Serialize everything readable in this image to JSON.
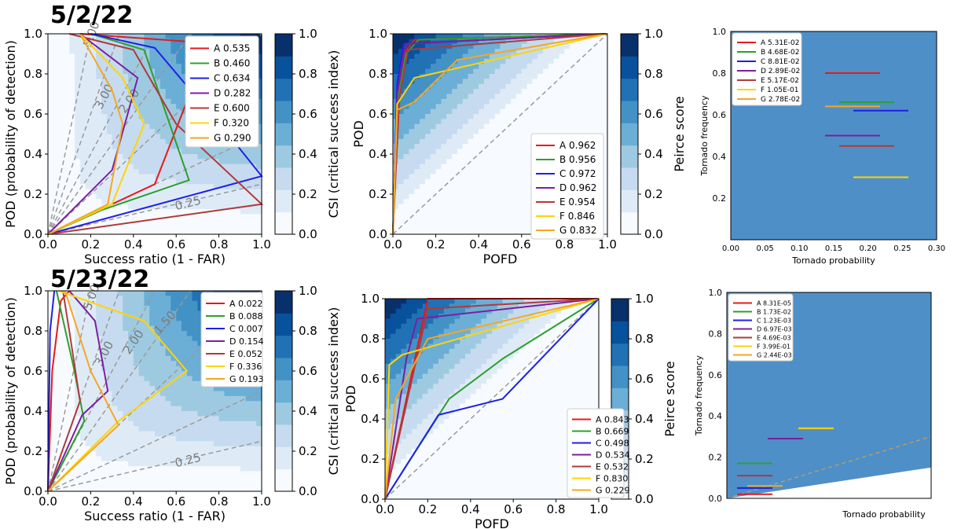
{
  "titles": {
    "row1": "5/2/22",
    "row2": "5/23/22"
  },
  "colors": {
    "A": "#e41a1c",
    "B": "#2ca02c",
    "C": "#1f1fe8",
    "D": "#7b1fa2",
    "E": "#b03a3a",
    "F": "#ffd400",
    "G": "#f5a623",
    "dashed": "#9a9a9a",
    "contour_dark": "#08306b",
    "contour_light": "#f7fbff"
  },
  "chart_data": [
    {
      "type": "line",
      "panel": "performance-diagram-5-2-22",
      "xlabel": "Success ratio (1 - FAR)",
      "ylabel": "POD (probability of detection)",
      "colorbar_label": "CSI (critical success index)",
      "xlim": [
        0,
        1
      ],
      "ylim": [
        0,
        1
      ],
      "xticks": [
        "0.0",
        "0.2",
        "0.4",
        "0.6",
        "0.8",
        "1.0"
      ],
      "yticks": [
        "0.0",
        "0.2",
        "0.4",
        "0.6",
        "0.8",
        "1.0"
      ],
      "colorbar_ticks": [
        "0.0",
        "0.2",
        "0.4",
        "0.6",
        "0.8",
        "1.0"
      ],
      "bias_labels": [
        "5.00",
        "3.00",
        "2.00",
        "0.25"
      ],
      "legend_position": "upper-right",
      "series": [
        {
          "name": "A 0.535",
          "key": "A",
          "x": [
            0,
            0.3,
            0.5,
            0.7,
            0.8,
            0.15
          ],
          "y": [
            0,
            0.15,
            0.25,
            0.8,
            0.95,
            1.0
          ]
        },
        {
          "name": "B 0.460",
          "key": "B",
          "x": [
            0,
            0.25,
            0.66,
            0.45,
            0.2
          ],
          "y": [
            0,
            0.12,
            0.27,
            0.92,
            1.0
          ]
        },
        {
          "name": "C 0.634",
          "key": "C",
          "x": [
            0,
            1.0,
            0.88,
            0.5,
            0.2
          ],
          "y": [
            0,
            0.29,
            0.45,
            0.93,
            1.0
          ]
        },
        {
          "name": "D 0.282",
          "key": "D",
          "x": [
            0,
            0.3,
            0.42,
            0.15
          ],
          "y": [
            0,
            0.32,
            0.78,
            1.0
          ]
        },
        {
          "name": "E 0.600",
          "key": "E",
          "x": [
            0,
            1.0,
            0.6,
            0.4,
            0.1
          ],
          "y": [
            0,
            0.15,
            0.55,
            0.92,
            1.0
          ]
        },
        {
          "name": "F 0.320",
          "key": "F",
          "x": [
            0,
            0.3,
            0.45,
            0.35,
            0.15
          ],
          "y": [
            0,
            0.15,
            0.55,
            0.78,
            1.0
          ]
        },
        {
          "name": "G 0.290",
          "key": "G",
          "x": [
            0,
            0.28,
            0.35,
            0.3,
            0.15
          ],
          "y": [
            0,
            0.15,
            0.55,
            0.72,
            1.0
          ]
        }
      ]
    },
    {
      "type": "line",
      "panel": "roc-5-2-22",
      "xlabel": "POFD",
      "ylabel": "POD",
      "colorbar_label": "Peirce score",
      "xlim": [
        0,
        1
      ],
      "ylim": [
        0,
        1
      ],
      "xticks": [
        "0.0",
        "0.2",
        "0.4",
        "0.6",
        "0.8",
        "1.0"
      ],
      "yticks": [
        "0.0",
        "0.2",
        "0.4",
        "0.6",
        "0.8",
        "1.0"
      ],
      "colorbar_ticks": [
        "0.0",
        "0.2",
        "0.4",
        "0.6",
        "0.8",
        "1.0"
      ],
      "legend_position": "lower-right",
      "series": [
        {
          "name": "A 0.962",
          "key": "A",
          "x": [
            0,
            0.02,
            0.05,
            0.1,
            1.0
          ],
          "y": [
            0,
            0.7,
            0.9,
            0.97,
            1.0
          ]
        },
        {
          "name": "B 0.956",
          "key": "B",
          "x": [
            0,
            0.02,
            0.06,
            0.12,
            1.0
          ],
          "y": [
            0,
            0.65,
            0.9,
            0.97,
            1.0
          ]
        },
        {
          "name": "C 0.972",
          "key": "C",
          "x": [
            0,
            0.02,
            0.05,
            1.0
          ],
          "y": [
            0,
            0.75,
            0.95,
            1.0
          ]
        },
        {
          "name": "D 0.962",
          "key": "D",
          "x": [
            0,
            0.02,
            0.06,
            1.0
          ],
          "y": [
            0,
            0.7,
            0.95,
            1.0
          ]
        },
        {
          "name": "E 0.954",
          "key": "E",
          "x": [
            0,
            0.03,
            0.07,
            1.0
          ],
          "y": [
            0,
            0.68,
            0.92,
            1.0
          ]
        },
        {
          "name": "F 0.846",
          "key": "F",
          "x": [
            0,
            0.02,
            0.1,
            1.0
          ],
          "y": [
            0,
            0.65,
            0.78,
            1.0
          ]
        },
        {
          "name": "G 0.832",
          "key": "G",
          "x": [
            0,
            0.02,
            0.1,
            0.3,
            1.0
          ],
          "y": [
            0,
            0.62,
            0.66,
            0.87,
            1.0
          ]
        }
      ]
    },
    {
      "type": "line",
      "panel": "reliability-5-2-22",
      "xlabel": "Tornado probability",
      "ylabel": "Tornado frequency",
      "yticks": [
        "0.0",
        "0.2",
        "0.4",
        "0.6",
        "0.8",
        "1.0"
      ],
      "xticks": [
        "0.00",
        "0.05",
        "0.10",
        "0.15",
        "0.20",
        "0.25",
        "0.30"
      ],
      "legend_position": "upper-left",
      "series": [
        {
          "name": "A 5.31E-02",
          "key": "A",
          "y_level": 0.8
        },
        {
          "name": "B 4.68E-02",
          "key": "B",
          "y_level": 0.66
        },
        {
          "name": "C 8.81E-02",
          "key": "C",
          "y_level": 0.62
        },
        {
          "name": "D 2.89E-02",
          "key": "D",
          "y_level": 0.5
        },
        {
          "name": "E 5.17E-02",
          "key": "E",
          "y_level": 0.45
        },
        {
          "name": "F 1.05E-01",
          "key": "F",
          "y_level": 0.3
        },
        {
          "name": "G 2.78E-02",
          "key": "G",
          "y_level": 0.64
        }
      ]
    },
    {
      "type": "line",
      "panel": "performance-diagram-5-23-22",
      "xlabel": "Success ratio (1 - FAR)",
      "ylabel": "POD (probability of detection)",
      "colorbar_label": "CSI (critical success index)",
      "xlim": [
        0,
        1
      ],
      "ylim": [
        0,
        1
      ],
      "xticks": [
        "0.0",
        "0.2",
        "0.4",
        "0.6",
        "0.8",
        "1.0"
      ],
      "yticks": [
        "0.0",
        "0.2",
        "0.4",
        "0.6",
        "0.8",
        "1.0"
      ],
      "colorbar_ticks": [
        "0.0",
        "0.2",
        "0.4",
        "0.6",
        "0.8",
        "1.0"
      ],
      "bias_labels": [
        "5.00",
        "3.00",
        "2.00",
        "1.50",
        "0.25"
      ],
      "legend_position": "upper-right",
      "series": [
        {
          "name": "A 0.022",
          "key": "A",
          "x": [
            0,
            0.02,
            0.06,
            0.1
          ],
          "y": [
            0,
            0.6,
            0.95,
            1.0
          ]
        },
        {
          "name": "B 0.088",
          "key": "B",
          "x": [
            0,
            0.17,
            0.12,
            0.04
          ],
          "y": [
            0,
            0.35,
            0.62,
            1.0
          ]
        },
        {
          "name": "C 0.007",
          "key": "C",
          "x": [
            0,
            0.01,
            0.03
          ],
          "y": [
            0,
            0.8,
            1.0
          ]
        },
        {
          "name": "D 0.154",
          "key": "D",
          "x": [
            0,
            0.16,
            0.28,
            0.22,
            0.1
          ],
          "y": [
            0,
            0.38,
            0.5,
            0.85,
            1.0
          ]
        },
        {
          "name": "E 0.052",
          "key": "E",
          "x": [
            0,
            0.15,
            0.1,
            0.07
          ],
          "y": [
            0,
            0.45,
            0.8,
            1.0
          ]
        },
        {
          "name": "F 0.336",
          "key": "F",
          "x": [
            0,
            0.33,
            0.65,
            0.45,
            0.05
          ],
          "y": [
            0,
            0.35,
            0.6,
            0.85,
            1.0
          ]
        },
        {
          "name": "G 0.193",
          "key": "G",
          "x": [
            0,
            0.33,
            0.2,
            0.08
          ],
          "y": [
            0,
            0.33,
            0.6,
            1.0
          ]
        }
      ]
    },
    {
      "type": "line",
      "panel": "roc-5-23-22",
      "xlabel": "POFD",
      "ylabel": "POD",
      "colorbar_label": "Peirce score",
      "xlim": [
        0,
        1
      ],
      "ylim": [
        0,
        1
      ],
      "xticks": [
        "0.0",
        "0.2",
        "0.4",
        "0.6",
        "0.8",
        "1.0"
      ],
      "yticks": [
        "0.0",
        "0.2",
        "0.4",
        "0.6",
        "0.8",
        "1.0"
      ],
      "colorbar_ticks": [
        "0.0",
        "0.2",
        "0.4",
        "0.6",
        "0.8",
        "1.0"
      ],
      "legend_position": "lower-right",
      "series": [
        {
          "name": "A 0.843",
          "key": "A",
          "x": [
            0,
            0.12,
            0.18,
            0.2,
            1.0
          ],
          "y": [
            0,
            0.6,
            0.9,
            1.0,
            1.0
          ]
        },
        {
          "name": "B 0.669",
          "key": "B",
          "x": [
            0,
            0.3,
            0.55,
            1.0
          ],
          "y": [
            0,
            0.5,
            0.7,
            1.0
          ]
        },
        {
          "name": "C 0.498",
          "key": "C",
          "x": [
            0,
            0.25,
            0.55,
            1.0
          ],
          "y": [
            0,
            0.42,
            0.5,
            1.0
          ]
        },
        {
          "name": "D 0.534",
          "key": "D",
          "x": [
            0,
            0.1,
            0.15,
            1.0
          ],
          "y": [
            0,
            0.7,
            0.9,
            1.0
          ]
        },
        {
          "name": "E 0.532",
          "key": "E",
          "x": [
            0,
            0.2,
            1.0
          ],
          "y": [
            0,
            0.95,
            1.0
          ]
        },
        {
          "name": "F 0.830",
          "key": "F",
          "x": [
            0,
            0.02,
            0.08,
            1.0
          ],
          "y": [
            0,
            0.67,
            0.72,
            1.0
          ]
        },
        {
          "name": "G 0.229",
          "key": "G",
          "x": [
            0,
            0.05,
            0.2,
            1.0
          ],
          "y": [
            0,
            0.5,
            0.8,
            1.0
          ]
        }
      ]
    },
    {
      "type": "line",
      "panel": "reliability-5-23-22",
      "xlabel": "Tornado probability",
      "ylabel": "Tornado frequency",
      "yticks": [
        "0.0",
        "0.2",
        "0.4",
        "0.6",
        "0.8",
        "1.0"
      ],
      "legend_position": "upper-left",
      "series": [
        {
          "name": "A 8.31E-05",
          "key": "A",
          "y_level": 0.02
        },
        {
          "name": "B 1.73E-02",
          "key": "B",
          "y_level": 0.17
        },
        {
          "name": "C 1.23E-03",
          "key": "C",
          "y_level": 0.05
        },
        {
          "name": "D 6.97E-03",
          "key": "D",
          "y_level": 0.29
        },
        {
          "name": "E 4.69E-03",
          "key": "E",
          "y_level": 0.11
        },
        {
          "name": "F 3.99E-01",
          "key": "F",
          "y_level": 0.34
        },
        {
          "name": "G 2.44E-03",
          "key": "G",
          "y_level": 0.06
        }
      ]
    }
  ]
}
